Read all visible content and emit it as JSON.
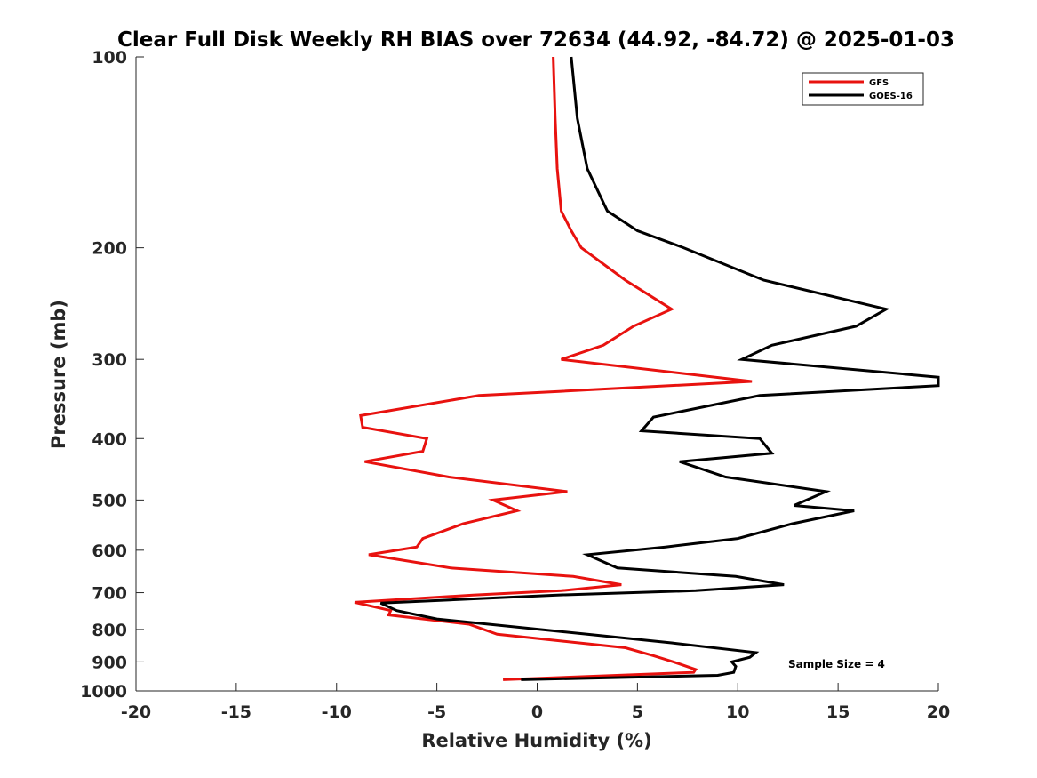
{
  "chart_data": {
    "type": "line",
    "title": "Clear Full Disk Weekly RH BIAS over 72634 (44.92, -84.72) @ 2025-01-03",
    "xlabel": "Relative Humidity (%)",
    "ylabel": "Pressure (mb)",
    "xlim": [
      -20,
      20
    ],
    "ylim": [
      100,
      1000
    ],
    "yscale": "log",
    "yreversed": true,
    "grid": false,
    "legend_position": "top-right",
    "xticks": [
      -20,
      -15,
      -10,
      -5,
      0,
      5,
      10,
      15,
      20
    ],
    "xtick_labels": [
      "-20",
      "-15",
      "-10",
      "-5",
      "0",
      "5",
      "10",
      "15",
      "20"
    ],
    "yticks": [
      100,
      200,
      300,
      400,
      500,
      600,
      700,
      800,
      900,
      1000
    ],
    "ytick_labels": [
      "100",
      "200",
      "300",
      "400",
      "500",
      "600",
      "700",
      "800",
      "900",
      "1000"
    ],
    "annotation": "Sample Size = 4",
    "series": [
      {
        "name": "GFS",
        "color": "#e8120f",
        "points": [
          [
            0.8,
            100
          ],
          [
            0.9,
            125
          ],
          [
            1.0,
            150
          ],
          [
            1.2,
            175
          ],
          [
            1.7,
            188
          ],
          [
            2.2,
            200
          ],
          [
            4.4,
            225
          ],
          [
            6.7,
            250
          ],
          [
            4.8,
            266
          ],
          [
            3.3,
            285
          ],
          [
            1.2,
            300
          ],
          [
            10.7,
            325
          ],
          [
            1.1,
            337
          ],
          [
            -2.9,
            342
          ],
          [
            -8.8,
            368
          ],
          [
            -8.7,
            384
          ],
          [
            -5.5,
            400
          ],
          [
            -5.7,
            419
          ],
          [
            -8.6,
            435
          ],
          [
            -4.4,
            460
          ],
          [
            1.5,
            485
          ],
          [
            -2.2,
            500
          ],
          [
            -1.0,
            520
          ],
          [
            -3.7,
            545
          ],
          [
            -5.7,
            575
          ],
          [
            -6.0,
            593
          ],
          [
            -8.4,
            610
          ],
          [
            -4.3,
            640
          ],
          [
            1.8,
            660
          ],
          [
            4.2,
            680
          ],
          [
            1.2,
            695
          ],
          [
            -3.2,
            706
          ],
          [
            -9.1,
            725
          ],
          [
            -7.3,
            747
          ],
          [
            -7.4,
            759
          ],
          [
            -3.4,
            785
          ],
          [
            -2.0,
            814
          ],
          [
            4.4,
            855
          ],
          [
            5.8,
            880
          ],
          [
            6.8,
            900
          ],
          [
            7.9,
            925
          ],
          [
            7.8,
            935
          ],
          [
            -1.7,
            960
          ]
        ]
      },
      {
        "name": "GOES-16",
        "color": "#000000",
        "points": [
          [
            1.7,
            100
          ],
          [
            2.0,
            125
          ],
          [
            2.5,
            150
          ],
          [
            3.5,
            175
          ],
          [
            5.0,
            188
          ],
          [
            7.3,
            200
          ],
          [
            11.3,
            225
          ],
          [
            17.4,
            250
          ],
          [
            15.9,
            266
          ],
          [
            11.7,
            285
          ],
          [
            10.2,
            300
          ],
          [
            20.0,
            320
          ],
          [
            20.0,
            330
          ],
          [
            11.1,
            342
          ],
          [
            5.8,
            370
          ],
          [
            5.2,
            389
          ],
          [
            11.1,
            400
          ],
          [
            11.7,
            422
          ],
          [
            7.1,
            435
          ],
          [
            9.4,
            460
          ],
          [
            14.4,
            485
          ],
          [
            12.8,
            510
          ],
          [
            15.8,
            520
          ],
          [
            12.7,
            545
          ],
          [
            10.0,
            575
          ],
          [
            6.4,
            593
          ],
          [
            2.5,
            610
          ],
          [
            4.0,
            640
          ],
          [
            9.9,
            660
          ],
          [
            12.3,
            680
          ],
          [
            7.9,
            695
          ],
          [
            1.0,
            706
          ],
          [
            -7.8,
            727
          ],
          [
            -7.0,
            747
          ],
          [
            -5.0,
            770
          ],
          [
            2.5,
            814
          ],
          [
            6.7,
            840
          ],
          [
            10.9,
            870
          ],
          [
            10.6,
            885
          ],
          [
            9.7,
            900
          ],
          [
            9.9,
            915
          ],
          [
            9.8,
            935
          ],
          [
            9.0,
            945
          ],
          [
            -0.8,
            960
          ]
        ]
      }
    ]
  }
}
